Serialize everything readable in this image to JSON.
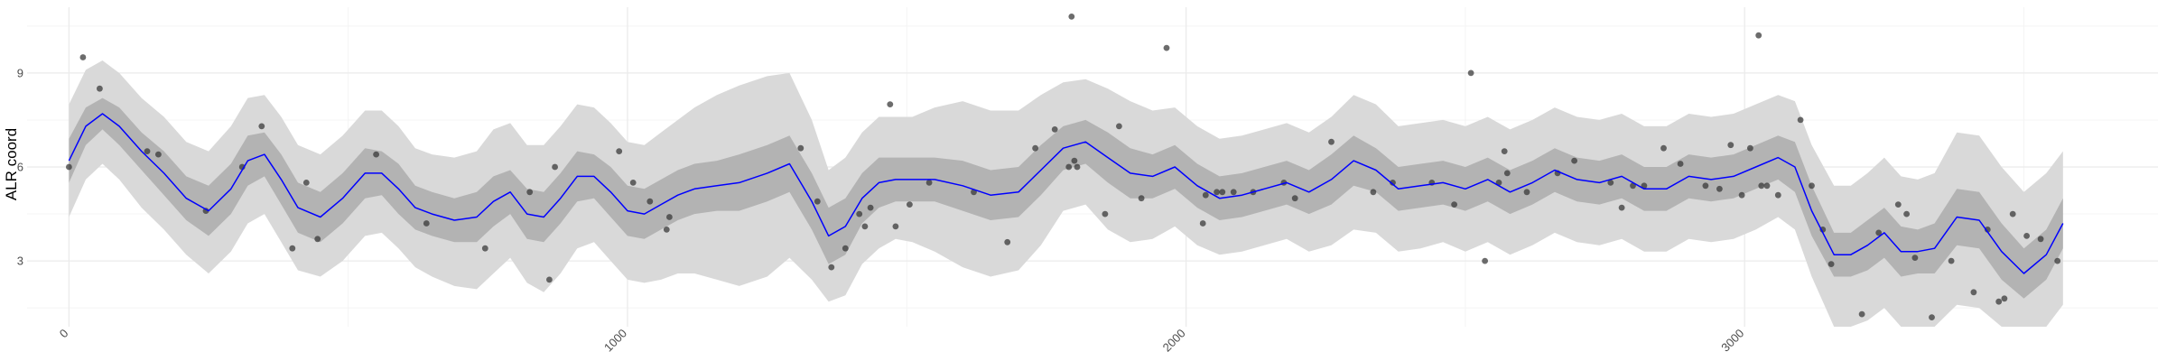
{
  "chart_data": {
    "type": "line",
    "title": "",
    "xlabel": "",
    "ylabel": "ALR coord",
    "xlim": [
      -75,
      3740
    ],
    "ylim": [
      0.9,
      11.1
    ],
    "x_ticks": [
      0,
      1000,
      2000,
      3000
    ],
    "x_tick_labels": [
      "0",
      "1000",
      "2000",
      "3000"
    ],
    "y_ticks": [
      3,
      6,
      9
    ],
    "y_tick_labels": [
      "3",
      "6",
      "9"
    ],
    "grid": true,
    "legend": "none",
    "colors": {
      "mean_line": "#0000ff",
      "inner_band": "#b3b3b3",
      "outer_band": "#d9d9d9",
      "points": "#333333",
      "grid_major": "#ebebeb",
      "grid_minor": "#f4f4f4"
    },
    "series": [
      {
        "role": "mean",
        "x": [
          0,
          30,
          60,
          90,
          130,
          170,
          210,
          250,
          290,
          320,
          350,
          380,
          410,
          450,
          490,
          530,
          560,
          590,
          620,
          650,
          690,
          730,
          760,
          790,
          820,
          850,
          880,
          910,
          940,
          970,
          1000,
          1030,
          1060,
          1090,
          1120,
          1160,
          1200,
          1250,
          1290,
          1330,
          1360,
          1390,
          1420,
          1450,
          1480,
          1510,
          1550,
          1600,
          1650,
          1700,
          1740,
          1780,
          1820,
          1860,
          1900,
          1940,
          1980,
          2020,
          2060,
          2100,
          2140,
          2180,
          2220,
          2260,
          2300,
          2340,
          2380,
          2420,
          2460,
          2500,
          2540,
          2580,
          2620,
          2660,
          2700,
          2740,
          2780,
          2820,
          2860,
          2900,
          2940,
          2980,
          3020,
          3060,
          3090,
          3120,
          3160,
          3190,
          3220,
          3250,
          3280,
          3310,
          3340,
          3380,
          3420,
          3460,
          3500,
          3540,
          3570
        ],
        "y": [
          6.2,
          7.3,
          7.7,
          7.3,
          6.5,
          5.8,
          5.0,
          4.6,
          5.3,
          6.2,
          6.4,
          5.6,
          4.7,
          4.4,
          5.0,
          5.8,
          5.8,
          5.3,
          4.7,
          4.5,
          4.3,
          4.4,
          4.9,
          5.2,
          4.5,
          4.4,
          5.0,
          5.7,
          5.7,
          5.2,
          4.6,
          4.5,
          4.8,
          5.1,
          5.3,
          5.4,
          5.5,
          5.8,
          6.1,
          4.9,
          3.8,
          4.1,
          5.0,
          5.5,
          5.6,
          5.6,
          5.6,
          5.4,
          5.1,
          5.2,
          5.9,
          6.6,
          6.8,
          6.3,
          5.8,
          5.7,
          6.0,
          5.4,
          5.0,
          5.1,
          5.3,
          5.5,
          5.2,
          5.6,
          6.2,
          5.9,
          5.3,
          5.4,
          5.5,
          5.3,
          5.6,
          5.2,
          5.5,
          5.9,
          5.6,
          5.5,
          5.7,
          5.3,
          5.3,
          5.7,
          5.6,
          5.7,
          6.0,
          6.3,
          6.0,
          4.6,
          3.2,
          3.2,
          3.5,
          3.9,
          3.3,
          3.3,
          3.4,
          4.4,
          4.3,
          3.3,
          2.6,
          3.2,
          4.2
        ],
        "lower_inner": [
          5.5,
          6.7,
          7.2,
          6.7,
          5.9,
          5.1,
          4.3,
          3.8,
          4.5,
          5.4,
          5.7,
          4.8,
          3.9,
          3.6,
          4.2,
          5.0,
          5.1,
          4.5,
          4.0,
          3.8,
          3.6,
          3.6,
          4.1,
          4.5,
          3.7,
          3.6,
          4.2,
          4.9,
          5.0,
          4.4,
          3.8,
          3.7,
          4.0,
          4.3,
          4.5,
          4.6,
          4.6,
          4.9,
          5.2,
          4.0,
          2.9,
          3.2,
          4.2,
          4.7,
          4.9,
          4.9,
          4.9,
          4.6,
          4.3,
          4.4,
          5.1,
          5.9,
          6.1,
          5.5,
          5.0,
          5.0,
          5.3,
          4.7,
          4.3,
          4.4,
          4.6,
          4.8,
          4.5,
          4.8,
          5.4,
          5.2,
          4.6,
          4.7,
          4.8,
          4.6,
          4.9,
          4.5,
          4.8,
          5.2,
          4.9,
          4.8,
          5.0,
          4.6,
          4.6,
          5.0,
          4.9,
          5.0,
          5.3,
          5.6,
          5.2,
          3.8,
          2.5,
          2.5,
          2.7,
          3.1,
          2.5,
          2.6,
          2.6,
          3.5,
          3.4,
          2.4,
          1.8,
          2.4,
          3.4
        ],
        "upper_inner": [
          6.9,
          7.9,
          8.2,
          7.9,
          7.1,
          6.5,
          5.7,
          5.4,
          6.1,
          7.0,
          7.1,
          6.4,
          5.5,
          5.2,
          5.8,
          6.6,
          6.5,
          6.1,
          5.4,
          5.2,
          5.0,
          5.2,
          5.7,
          5.9,
          5.3,
          5.2,
          5.8,
          6.5,
          6.4,
          6.0,
          5.4,
          5.3,
          5.6,
          5.9,
          6.1,
          6.2,
          6.4,
          6.7,
          7.0,
          5.8,
          4.7,
          5.0,
          5.8,
          6.3,
          6.3,
          6.3,
          6.3,
          6.2,
          5.9,
          6.0,
          6.7,
          7.3,
          7.5,
          7.1,
          6.6,
          6.4,
          6.7,
          6.1,
          5.7,
          5.8,
          6.0,
          6.2,
          5.9,
          6.4,
          7.0,
          6.6,
          6.0,
          6.1,
          6.2,
          6.0,
          6.3,
          5.9,
          6.2,
          6.6,
          6.3,
          6.2,
          6.4,
          6.0,
          6.0,
          6.4,
          6.3,
          6.4,
          6.7,
          7.0,
          6.8,
          5.4,
          3.9,
          3.9,
          4.3,
          4.7,
          4.1,
          4.0,
          4.2,
          5.3,
          5.2,
          4.2,
          3.4,
          4.0,
          5.0
        ],
        "lower_outer": [
          4.4,
          5.6,
          6.1,
          5.6,
          4.7,
          4.0,
          3.2,
          2.6,
          3.3,
          4.2,
          4.5,
          3.6,
          2.7,
          2.5,
          3.0,
          3.8,
          3.9,
          3.4,
          2.8,
          2.5,
          2.2,
          2.1,
          2.6,
          3.1,
          2.3,
          2.0,
          2.6,
          3.4,
          3.6,
          3.0,
          2.4,
          2.3,
          2.4,
          2.6,
          2.6,
          2.4,
          2.2,
          2.5,
          3.1,
          2.4,
          1.7,
          1.9,
          2.9,
          3.4,
          3.7,
          3.6,
          3.3,
          2.8,
          2.5,
          2.7,
          3.5,
          4.6,
          4.8,
          4.0,
          3.6,
          3.7,
          4.1,
          3.5,
          3.2,
          3.3,
          3.5,
          3.7,
          3.3,
          3.5,
          4.0,
          3.9,
          3.3,
          3.4,
          3.6,
          3.3,
          3.6,
          3.2,
          3.5,
          3.9,
          3.6,
          3.5,
          3.7,
          3.3,
          3.3,
          3.7,
          3.6,
          3.7,
          4.0,
          4.4,
          4.0,
          2.5,
          0.9,
          0.9,
          1.1,
          1.5,
          0.9,
          0.9,
          0.9,
          1.6,
          1.5,
          0.4,
          -0.2,
          0.4,
          1.6
        ],
        "upper_outer": [
          8.0,
          9.1,
          9.4,
          9.0,
          8.2,
          7.6,
          6.8,
          6.5,
          7.3,
          8.2,
          8.3,
          7.6,
          6.7,
          6.4,
          7.0,
          7.8,
          7.8,
          7.3,
          6.6,
          6.4,
          6.3,
          6.5,
          7.2,
          7.4,
          6.7,
          6.7,
          7.3,
          8.0,
          7.9,
          7.4,
          6.8,
          6.7,
          7.1,
          7.5,
          7.9,
          8.3,
          8.6,
          8.9,
          9.0,
          7.5,
          5.9,
          6.3,
          7.1,
          7.6,
          7.6,
          7.6,
          7.9,
          8.1,
          7.8,
          7.8,
          8.3,
          8.7,
          8.8,
          8.5,
          8.1,
          7.8,
          7.9,
          7.3,
          6.9,
          7.0,
          7.2,
          7.4,
          7.1,
          7.6,
          8.3,
          8.0,
          7.3,
          7.4,
          7.5,
          7.3,
          7.6,
          7.2,
          7.5,
          7.9,
          7.6,
          7.5,
          7.7,
          7.3,
          7.3,
          7.7,
          7.6,
          7.7,
          8.0,
          8.3,
          8.1,
          6.7,
          5.4,
          5.4,
          5.8,
          6.3,
          5.7,
          5.6,
          5.8,
          7.1,
          7.0,
          6.0,
          5.2,
          5.8,
          6.5
        ]
      },
      {
        "role": "observed",
        "x": [
          0,
          25,
          55,
          140,
          160,
          245,
          310,
          345,
          400,
          425,
          445,
          550,
          640,
          745,
          825,
          860,
          870,
          985,
          1010,
          1040,
          1070,
          1075,
          1310,
          1340,
          1365,
          1390,
          1415,
          1425,
          1435,
          1470,
          1480,
          1505,
          1540,
          1620,
          1680,
          1730,
          1765,
          1790,
          1795,
          1800,
          1805,
          1855,
          1880,
          1920,
          1965,
          2030,
          2035,
          2055,
          2065,
          2085,
          2120,
          2175,
          2195,
          2260,
          2335,
          2370,
          2440,
          2480,
          2510,
          2535,
          2560,
          2570,
          2575,
          2610,
          2665,
          2695,
          2760,
          2780,
          2800,
          2820,
          2855,
          2885,
          2930,
          2955,
          2975,
          2995,
          3010,
          3025,
          3030,
          3040,
          3060,
          3100,
          3120,
          3140,
          3155,
          3210,
          3240,
          3275,
          3290,
          3305,
          3335,
          3370,
          3410,
          3435,
          3455,
          3465,
          3480,
          3505,
          3530,
          3560
        ],
        "y": [
          6.0,
          9.5,
          8.5,
          6.5,
          6.4,
          4.6,
          6.0,
          7.3,
          3.4,
          5.5,
          3.7,
          6.4,
          4.2,
          3.4,
          5.2,
          2.4,
          6.0,
          6.5,
          5.5,
          4.9,
          4.0,
          4.4,
          6.6,
          4.9,
          2.8,
          3.4,
          4.5,
          4.1,
          4.7,
          8.0,
          4.1,
          4.8,
          5.5,
          5.2,
          3.6,
          6.6,
          7.2,
          6.0,
          10.8,
          6.2,
          6.0,
          4.5,
          7.3,
          5.0,
          9.8,
          4.2,
          5.1,
          5.2,
          5.2,
          5.2,
          5.2,
          5.5,
          5.0,
          6.8,
          5.2,
          5.5,
          5.5,
          4.8,
          9.0,
          3.0,
          5.5,
          6.5,
          5.8,
          5.2,
          5.8,
          6.2,
          5.5,
          4.7,
          5.4,
          5.4,
          6.6,
          6.1,
          5.4,
          5.3,
          6.7,
          5.1,
          6.6,
          10.2,
          5.4,
          5.4,
          5.1,
          7.5,
          5.4,
          4.0,
          2.9,
          1.3,
          3.9,
          4.8,
          4.5,
          3.1,
          1.2,
          3.0,
          2.0,
          4.0,
          1.7,
          1.8,
          4.5,
          3.8,
          3.7,
          3.0
        ]
      }
    ]
  }
}
